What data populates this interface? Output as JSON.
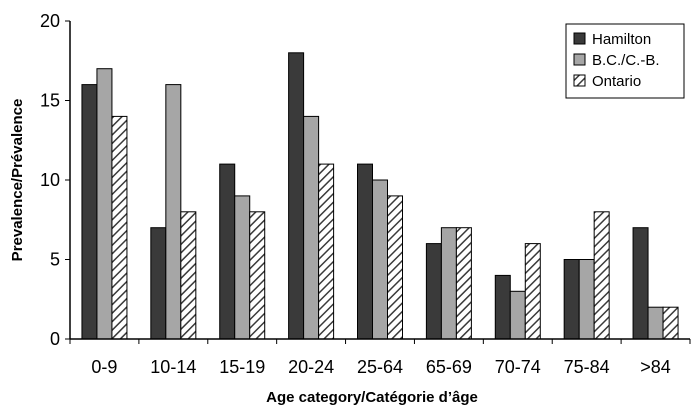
{
  "chart_data": {
    "type": "bar",
    "title": "",
    "xlabel": "Age category/Catégorie d’âge",
    "ylabel": "Prevalence/Prévalence",
    "ylim": [
      0,
      20
    ],
    "yticks": [
      0,
      5,
      10,
      15,
      20
    ],
    "grid": false,
    "legend_position": "top-right",
    "categories": [
      "0-9",
      "10-14",
      "15-19",
      "20-24",
      "25-64",
      "65-69",
      "70-74",
      "75-84",
      ">84"
    ],
    "series": [
      {
        "name": "Hamilton",
        "color": "#3a3a3a",
        "pattern": "solid",
        "values": [
          16,
          7,
          11,
          18,
          11,
          6,
          4,
          5,
          7
        ]
      },
      {
        "name": "B.C./C.-B.",
        "color": "#a6a6a6",
        "pattern": "solid",
        "values": [
          17,
          16,
          9,
          14,
          10,
          7,
          3,
          5,
          2
        ]
      },
      {
        "name": "Ontario",
        "color": "#3a3a3a",
        "pattern": "hatched",
        "values": [
          14,
          8,
          8,
          11,
          9,
          7,
          6,
          8,
          2
        ]
      }
    ]
  }
}
